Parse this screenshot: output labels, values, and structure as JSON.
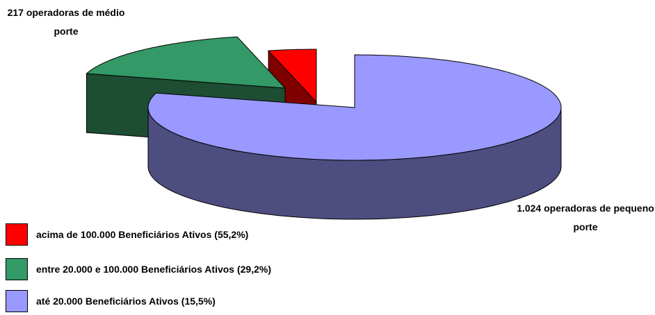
{
  "chart_data": {
    "type": "pie",
    "categories": [
      "acima de 100.000  Beneficiários Ativos (55,2%)",
      "entre 20.000 e  100.000  Beneficiários Ativos (29,2%)",
      "até 20.000  Beneficiários Ativos (15,5%)"
    ],
    "values": [
      48,
      217,
      1024
    ],
    "value_labels": [
      null,
      "217 operadoras de médio porte",
      "1.024 operadoras de pequeno porte"
    ],
    "colors": [
      "#ff0000",
      "#339966",
      "#9999ff"
    ],
    "side_colors": [
      "#800000",
      "#1d4d33",
      "#4d4d80"
    ]
  }
}
